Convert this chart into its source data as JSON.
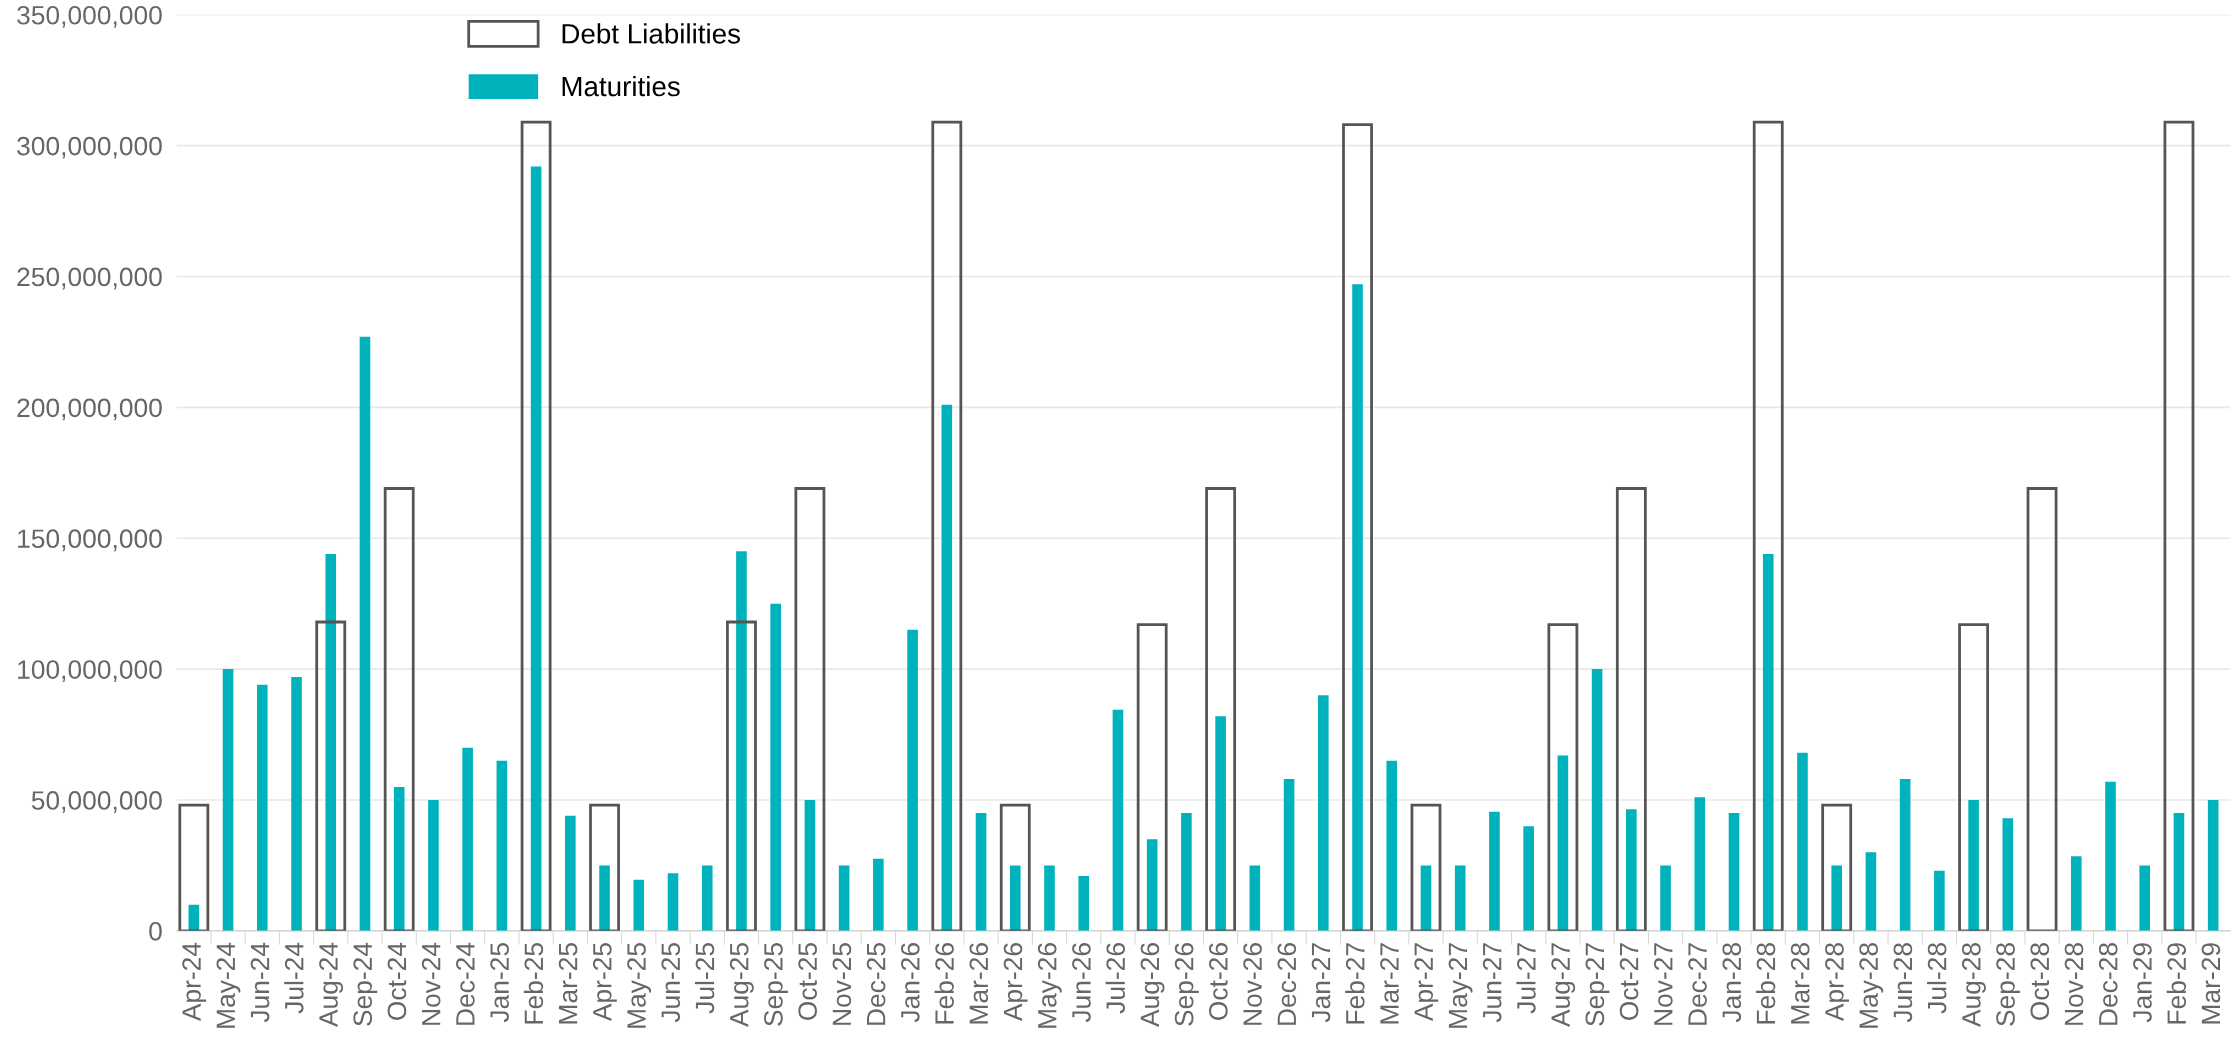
{
  "chart_data": {
    "type": "bar",
    "categories": [
      "Apr-24",
      "May-24",
      "Jun-24",
      "Jul-24",
      "Aug-24",
      "Sep-24",
      "Oct-24",
      "Nov-24",
      "Dec-24",
      "Jan-25",
      "Feb-25",
      "Mar-25",
      "Apr-25",
      "May-25",
      "Jun-25",
      "Jul-25",
      "Aug-25",
      "Sep-25",
      "Oct-25",
      "Nov-25",
      "Dec-25",
      "Jan-26",
      "Feb-26",
      "Mar-26",
      "Apr-26",
      "May-26",
      "Jun-26",
      "Jul-26",
      "Aug-26",
      "Sep-26",
      "Oct-26",
      "Nov-26",
      "Dec-26",
      "Jan-27",
      "Feb-27",
      "Mar-27",
      "Apr-27",
      "May-27",
      "Jun-27",
      "Jul-27",
      "Aug-27",
      "Sep-27",
      "Oct-27",
      "Nov-27",
      "Dec-27",
      "Jan-28",
      "Feb-28",
      "Mar-28",
      "Apr-28",
      "May-28",
      "Jun-28",
      "Jul-28",
      "Aug-28",
      "Sep-28",
      "Oct-28",
      "Nov-28",
      "Dec-28",
      "Jan-29",
      "Feb-29",
      "Mar-29"
    ],
    "series": [
      {
        "name": "Debt Liabilities",
        "color": "#555555",
        "values": [
          48000000,
          null,
          null,
          null,
          118000000,
          null,
          169000000,
          null,
          null,
          null,
          309000000,
          null,
          48000000,
          null,
          null,
          null,
          118000000,
          null,
          169000000,
          null,
          null,
          null,
          309000000,
          null,
          48000000,
          null,
          null,
          null,
          117000000,
          null,
          169000000,
          null,
          null,
          null,
          308000000,
          null,
          48000000,
          null,
          null,
          null,
          117000000,
          null,
          169000000,
          null,
          null,
          null,
          309000000,
          null,
          48000000,
          null,
          null,
          null,
          117000000,
          null,
          169000000,
          null,
          null,
          null,
          309000000,
          null
        ]
      },
      {
        "name": "Maturities",
        "color": "#00b2bb",
        "values": [
          10000000,
          100000000,
          94000000,
          97000000,
          144000000,
          227000000,
          55000000,
          50000000,
          70000000,
          65000000,
          292000000,
          44000000,
          25000000,
          19500000,
          22000000,
          25000000,
          145000000,
          125000000,
          50000000,
          25000000,
          27500000,
          115000000,
          201000000,
          45000000,
          25000000,
          25000000,
          21000000,
          84500000,
          35000000,
          45000000,
          82000000,
          25000000,
          58000000,
          90000000,
          247000000,
          65000000,
          25000000,
          25000000,
          45500000,
          40000000,
          67000000,
          100000000,
          46500000,
          25000000,
          51000000,
          45000000,
          144000000,
          68000000,
          25000000,
          30000000,
          58000000,
          23000000,
          50000000,
          43000000,
          null,
          28500000,
          57000000,
          25000000,
          45000000,
          50000000
        ]
      }
    ],
    "ylim": [
      0,
      350000000
    ],
    "yticks": [
      0,
      {
        "value": 50000000,
        "label": "50,000,000"
      },
      {
        "value": 100000000,
        "label": "100,000,000"
      },
      {
        "value": 150000000,
        "label": "150,000,000"
      },
      {
        "value": 200000000,
        "label": "200,000,000"
      },
      {
        "value": 250000000,
        "label": "250,000,000"
      },
      {
        "value": 300000000,
        "label": "300,000,000"
      },
      {
        "value": 350000000,
        "label": "350,000,000"
      }
    ],
    "grid": "y",
    "legend": "top left"
  }
}
